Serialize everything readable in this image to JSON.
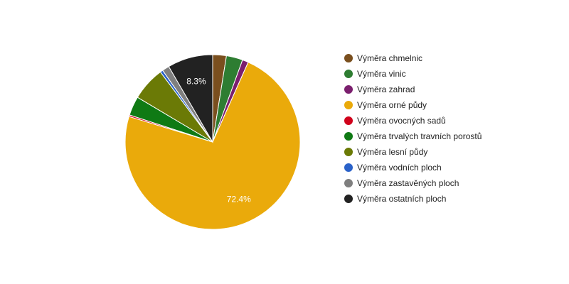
{
  "chart_data": {
    "type": "pie",
    "legend_position": "right",
    "slices": [
      {
        "label": "Výměra chmelnic",
        "value": 2.5,
        "color": "#7a4f1e"
      },
      {
        "label": "Výměra vinic",
        "value": 3.0,
        "color": "#2e7d32"
      },
      {
        "label": "Výměra zahrad",
        "value": 1.1,
        "color": "#7b1f6e"
      },
      {
        "label": "Výměra orné půdy",
        "value": 72.4,
        "color": "#eaaa0b",
        "data_label": "72.4%"
      },
      {
        "label": "Výměra ovocných sadů",
        "value": 0.3,
        "color": "#d0021b"
      },
      {
        "label": "Výměra trvalých travních porostů",
        "value": 3.5,
        "color": "#0f7a14"
      },
      {
        "label": "Výměra lesní půdy",
        "value": 6.2,
        "color": "#6b7a06"
      },
      {
        "label": "Výměra vodních ploch",
        "value": 0.5,
        "color": "#2a62c9"
      },
      {
        "label": "Výměra zastavěných ploch",
        "value": 1.3,
        "color": "#7f7f7f"
      },
      {
        "label": "Výměra ostatních ploch",
        "value": 8.3,
        "color": "#222222",
        "data_label": "8.3%"
      }
    ]
  }
}
